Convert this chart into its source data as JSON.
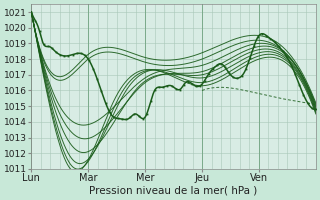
{
  "background_color": "#c8e8d8",
  "plot_bg_color": "#d8ece4",
  "grid_color": "#a8c8b8",
  "line_color": "#1a5c1a",
  "ylim": [
    1011,
    1021.5
  ],
  "yticks": [
    1011,
    1012,
    1013,
    1014,
    1015,
    1016,
    1017,
    1018,
    1019,
    1020,
    1021
  ],
  "xlabel": "Pression niveau de la mer( hPa )",
  "day_labels": [
    "Lun",
    "Mar",
    "Mer",
    "Jeu",
    "Ven"
  ],
  "day_positions": [
    0,
    48,
    96,
    144,
    192
  ],
  "total_points": 240,
  "forecast_lines": [
    {
      "xk": [
        0,
        8,
        48,
        96,
        144,
        192,
        240
      ],
      "yk": [
        1021,
        1018.5,
        1018.3,
        1018.1,
        1018.4,
        1019.5,
        1015.2
      ]
    },
    {
      "xk": [
        0,
        8,
        48,
        96,
        144,
        192,
        240
      ],
      "yk": [
        1021,
        1018.4,
        1018.0,
        1017.8,
        1018.0,
        1019.2,
        1015.1
      ]
    },
    {
      "xk": [
        0,
        8,
        42,
        96,
        144,
        192,
        240
      ],
      "yk": [
        1021,
        1018.3,
        1013.8,
        1016.8,
        1017.6,
        1019.0,
        1015.0
      ]
    },
    {
      "xk": [
        0,
        8,
        40,
        96,
        144,
        192,
        240
      ],
      "yk": [
        1021,
        1018.2,
        1013.0,
        1016.5,
        1017.2,
        1018.8,
        1014.9
      ]
    },
    {
      "xk": [
        0,
        8,
        38,
        90,
        144,
        192,
        240
      ],
      "yk": [
        1021,
        1018.1,
        1012.2,
        1016.2,
        1017.0,
        1018.6,
        1014.8
      ]
    },
    {
      "xk": [
        0,
        8,
        36,
        80,
        144,
        192,
        240
      ],
      "yk": [
        1021,
        1018.0,
        1011.5,
        1016.0,
        1016.8,
        1018.4,
        1014.7
      ]
    },
    {
      "xk": [
        0,
        8,
        34,
        75,
        144,
        192,
        240
      ],
      "yk": [
        1021,
        1017.9,
        1011.2,
        1015.7,
        1016.5,
        1018.2,
        1014.6
      ]
    },
    {
      "xk": [
        0,
        8,
        33,
        70,
        144,
        192,
        240
      ],
      "yk": [
        1021,
        1017.8,
        1011.0,
        1015.4,
        1016.3,
        1018.0,
        1014.5
      ]
    }
  ],
  "obs_line": {
    "xk": [
      0,
      3,
      6,
      10,
      15,
      20,
      30,
      48,
      58,
      68,
      75,
      82,
      88,
      96,
      104,
      110,
      118,
      126,
      130,
      138,
      144,
      150,
      155,
      160,
      168,
      175,
      180,
      192,
      196,
      200,
      205,
      210,
      215,
      220,
      228,
      235,
      240
    ],
    "yk": [
      1021,
      1020.5,
      1020,
      1019,
      1018.8,
      1018.5,
      1018.2,
      1018.0,
      1016.2,
      1014.4,
      1014.2,
      1014.2,
      1014.5,
      1014.3,
      1016.0,
      1016.2,
      1016.3,
      1016.1,
      1016.5,
      1016.3,
      1016.4,
      1017.1,
      1017.5,
      1017.7,
      1017.0,
      1016.8,
      1017.2,
      1019.5,
      1019.6,
      1019.4,
      1019.1,
      1018.7,
      1018.2,
      1017.5,
      1016.0,
      1015.0,
      1014.8
    ]
  },
  "dashed_line": {
    "xk": [
      144,
      160,
      180,
      192,
      210,
      225,
      240
    ],
    "yk": [
      1016.0,
      1016.2,
      1016.0,
      1015.8,
      1015.5,
      1015.3,
      1015.1
    ]
  }
}
